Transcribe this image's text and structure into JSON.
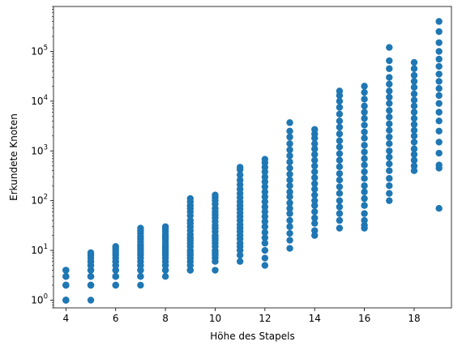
{
  "chart_data": {
    "type": "scatter",
    "title": "",
    "xlabel": "Höhe des Stapels",
    "ylabel": "Erkundete Knoten",
    "xlim": [
      3.5,
      19.5
    ],
    "ylim": [
      0.7,
      800000
    ],
    "yscale": "log",
    "grid": false,
    "x_ticks": [
      4,
      6,
      8,
      10,
      12,
      14,
      16,
      18
    ],
    "x_tick_labels": [
      "4",
      "6",
      "8",
      "10",
      "12",
      "14",
      "16",
      "18"
    ],
    "y_ticks": [
      1,
      10,
      100,
      1000,
      10000,
      100000
    ],
    "y_tick_labels": [
      {
        "base": "10",
        "exp": "0"
      },
      {
        "base": "10",
        "exp": "1"
      },
      {
        "base": "10",
        "exp": "2"
      },
      {
        "base": "10",
        "exp": "3"
      },
      {
        "base": "10",
        "exp": "4"
      },
      {
        "base": "10",
        "exp": "5"
      }
    ],
    "point_color": "#1f77b4",
    "series": [
      {
        "x": 4,
        "y": [
          1,
          1,
          1,
          1,
          2,
          2,
          2,
          2,
          3,
          3,
          3,
          4,
          4,
          4
        ]
      },
      {
        "x": 5,
        "y": [
          1,
          2,
          2,
          2,
          3,
          3,
          3,
          4,
          4,
          5,
          5,
          6,
          6,
          7,
          8,
          9
        ]
      },
      {
        "x": 6,
        "y": [
          2,
          2,
          3,
          3,
          3,
          4,
          4,
          5,
          5,
          6,
          6,
          7,
          8,
          9,
          10,
          11,
          12
        ]
      },
      {
        "x": 7,
        "y": [
          2,
          3,
          3,
          4,
          4,
          5,
          5,
          6,
          7,
          8,
          9,
          10,
          11,
          12,
          13,
          15,
          17,
          19,
          22,
          25,
          28
        ]
      },
      {
        "x": 8,
        "y": [
          3,
          4,
          4,
          5,
          5,
          6,
          7,
          8,
          9,
          10,
          11,
          12,
          13,
          15,
          17,
          19,
          21,
          24,
          27,
          30
        ]
      },
      {
        "x": 9,
        "y": [
          4,
          4,
          5,
          6,
          7,
          8,
          9,
          10,
          12,
          14,
          16,
          18,
          21,
          25,
          30,
          35,
          40,
          50,
          60,
          70,
          80,
          95,
          110
        ]
      },
      {
        "x": 10,
        "y": [
          4,
          6,
          7,
          8,
          9,
          10,
          12,
          14,
          16,
          18,
          20,
          24,
          28,
          32,
          38,
          45,
          52,
          60,
          70,
          85,
          100,
          115,
          130
        ]
      },
      {
        "x": 11,
        "y": [
          6,
          8,
          10,
          12,
          14,
          17,
          20,
          24,
          28,
          33,
          40,
          48,
          57,
          68,
          80,
          95,
          115,
          140,
          170,
          210,
          260,
          330,
          420,
          470
        ]
      },
      {
        "x": 12,
        "y": [
          5,
          7,
          10,
          14,
          18,
          23,
          30,
          38,
          48,
          60,
          75,
          95,
          120,
          150,
          190,
          240,
          300,
          380,
          470,
          580,
          680
        ]
      },
      {
        "x": 13,
        "y": [
          11,
          16,
          22,
          30,
          40,
          55,
          70,
          90,
          120,
          150,
          200,
          260,
          340,
          450,
          600,
          800,
          1050,
          1400,
          1900,
          2500,
          3700
        ]
      },
      {
        "x": 14,
        "y": [
          20,
          25,
          35,
          45,
          60,
          80,
          100,
          130,
          170,
          220,
          290,
          380,
          500,
          650,
          850,
          1100,
          1400,
          1800,
          2200,
          2700
        ]
      },
      {
        "x": 15,
        "y": [
          28,
          40,
          55,
          75,
          100,
          140,
          190,
          260,
          350,
          480,
          650,
          880,
          1200,
          1600,
          2200,
          3000,
          4000,
          5500,
          7500,
          10000,
          13000,
          16000
        ]
      },
      {
        "x": 16,
        "y": [
          28,
          32,
          40,
          55,
          80,
          110,
          150,
          200,
          280,
          380,
          520,
          700,
          950,
          1300,
          1800,
          2400,
          3300,
          4500,
          6000,
          8000,
          11000,
          15000,
          20000
        ]
      },
      {
        "x": 17,
        "y": [
          100,
          140,
          200,
          280,
          400,
          550,
          750,
          1000,
          1400,
          1900,
          2600,
          3500,
          4800,
          6500,
          9000,
          12000,
          16000,
          22000,
          30000,
          45000,
          65000,
          120000
        ]
      },
      {
        "x": 18,
        "y": [
          400,
          500,
          650,
          850,
          1100,
          1500,
          2000,
          2600,
          3400,
          4500,
          6000,
          8000,
          10500,
          14000,
          19000,
          25000,
          33000,
          45000,
          60000
        ]
      },
      {
        "x": 19,
        "y": [
          70,
          450,
          520,
          900,
          1500,
          2500,
          4000,
          6000,
          9000,
          13000,
          18000,
          25000,
          35000,
          50000,
          70000,
          100000,
          150000,
          250000,
          400000
        ]
      }
    ]
  }
}
